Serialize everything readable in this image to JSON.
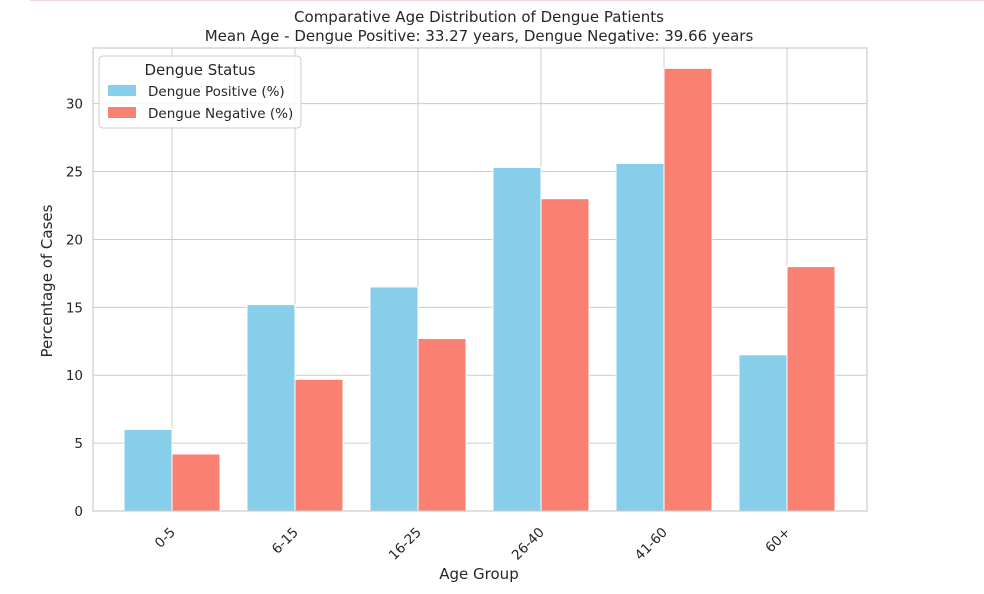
{
  "chart_data": {
    "type": "bar",
    "title": "Comparative Age Distribution of Dengue Patients",
    "subtitle": "Mean Age - Dengue Positive: 33.27 years, Dengue Negative: 39.66 years",
    "xlabel": "Age Group",
    "ylabel": "Percentage of Cases",
    "categories": [
      "0-5",
      "6-15",
      "16-25",
      "26-40",
      "41-60",
      "60+"
    ],
    "series": [
      {
        "name": "Dengue Positive (%)",
        "color": "#87ceeb",
        "values": [
          6.0,
          15.2,
          16.5,
          25.3,
          25.6,
          11.5
        ]
      },
      {
        "name": "Dengue Negative (%)",
        "color": "#fa8072",
        "values": [
          4.2,
          9.7,
          12.7,
          23.0,
          32.6,
          18.0
        ]
      }
    ],
    "ylim": [
      0,
      34.1
    ],
    "yticks": [
      0,
      5,
      10,
      15,
      20,
      25,
      30
    ],
    "grid": true,
    "legend": {
      "title": "Dengue Status",
      "placement": "top-left"
    },
    "tick_rotation_deg": 45
  }
}
